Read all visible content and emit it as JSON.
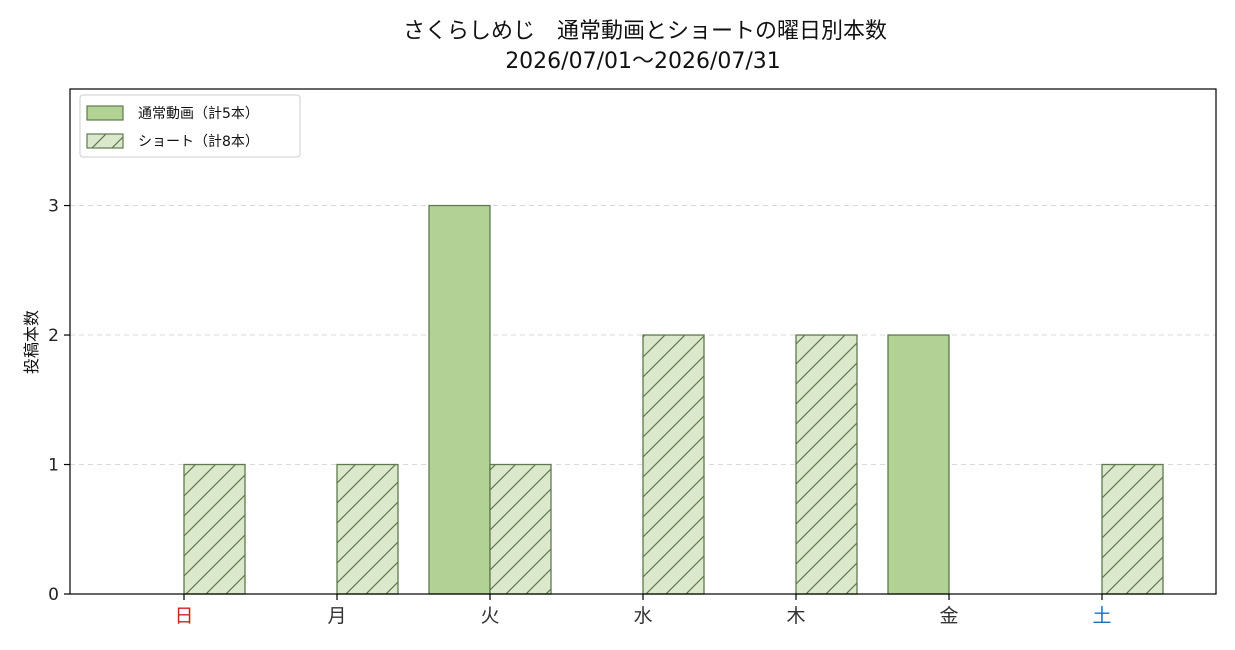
{
  "chart_data": {
    "type": "bar",
    "title": "さくらしめじ　通常動画とショートの曜日別本数",
    "subtitle": "2026/07/01〜2026/07/31",
    "xlabel": "",
    "ylabel": "投稿本数",
    "categories": [
      "日",
      "月",
      "火",
      "水",
      "木",
      "金",
      "土"
    ],
    "category_colors": [
      "#cc2222",
      "#333333",
      "#333333",
      "#333333",
      "#333333",
      "#333333",
      "#1f6fbf"
    ],
    "series": [
      {
        "name": "通常動画（計5本）",
        "values": [
          0,
          0,
          3,
          0,
          0,
          2,
          0
        ],
        "fill": "#b2d195",
        "stroke": "#5f7a4e",
        "hatch": false
      },
      {
        "name": "ショート（計8本）",
        "values": [
          1,
          1,
          1,
          2,
          2,
          0,
          1
        ],
        "fill": "#dbe8cb",
        "stroke": "#5f7a4e",
        "hatch": true
      }
    ],
    "ylim": [
      0,
      3.9
    ],
    "yticks": [
      0,
      1,
      2,
      3
    ],
    "grid": true,
    "legend_position": "top-left"
  }
}
